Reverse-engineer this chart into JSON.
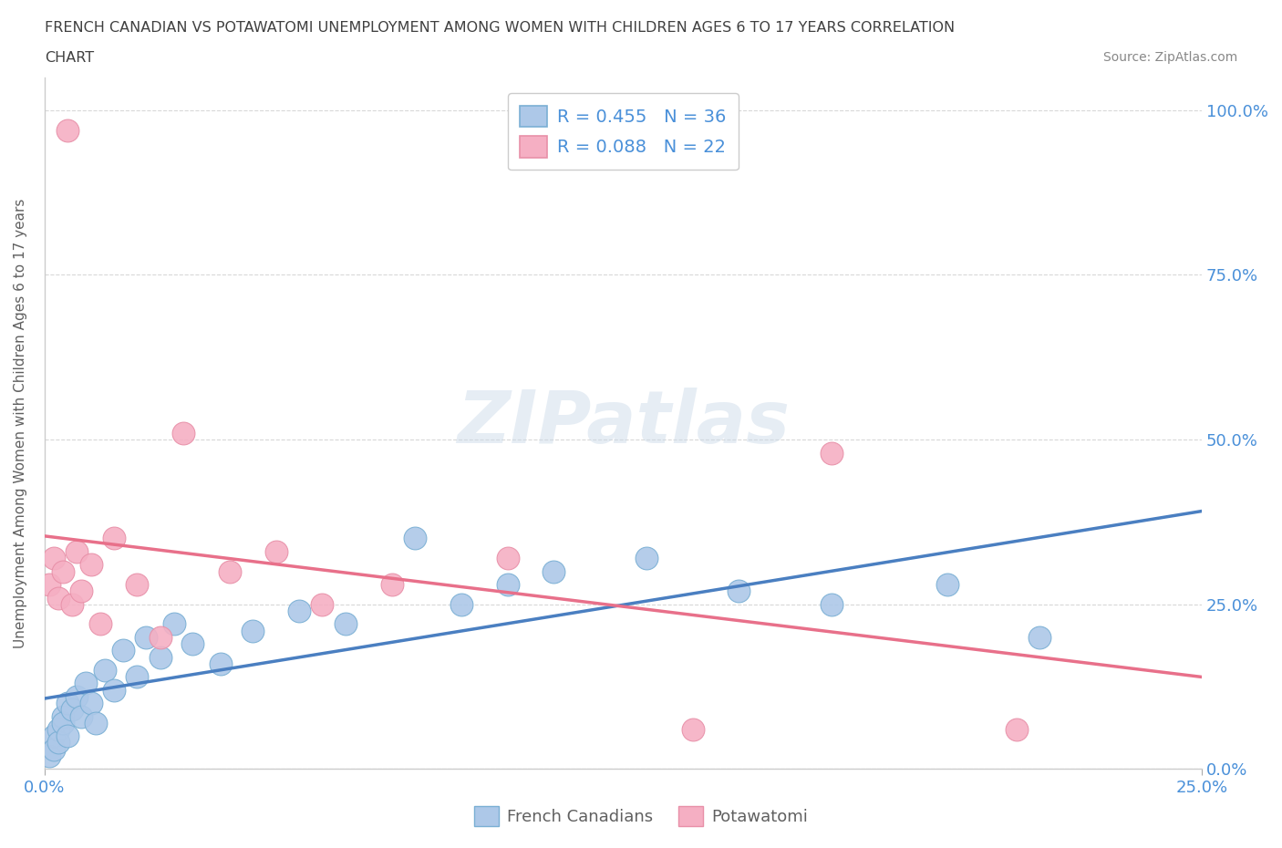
{
  "title_line1": "FRENCH CANADIAN VS POTAWATOMI UNEMPLOYMENT AMONG WOMEN WITH CHILDREN AGES 6 TO 17 YEARS CORRELATION",
  "title_line2": "CHART",
  "source_text": "Source: ZipAtlas.com",
  "ylabel": "Unemployment Among Women with Children Ages 6 to 17 years",
  "xlim": [
    0.0,
    0.25
  ],
  "ylim": [
    0.0,
    1.05
  ],
  "xtick_labels": [
    "0.0%",
    "25.0%"
  ],
  "ytick_labels": [
    "0.0%",
    "25.0%",
    "50.0%",
    "75.0%",
    "100.0%"
  ],
  "ytick_positions": [
    0.0,
    0.25,
    0.5,
    0.75,
    1.0
  ],
  "watermark_zip": "ZIP",
  "watermark_atlas": "atlas",
  "legend_blue_label": "R = 0.455   N = 36",
  "legend_pink_label": "R = 0.088   N = 22",
  "french_canadians_color": "#adc8e8",
  "potawatomi_color": "#f5afc3",
  "blue_line_color": "#4a7fc1",
  "pink_line_color": "#e8708a",
  "blue_marker_edge": "#7aafd4",
  "pink_marker_edge": "#e890a8",
  "french_x": [
    0.001,
    0.002,
    0.002,
    0.003,
    0.003,
    0.004,
    0.004,
    0.005,
    0.005,
    0.006,
    0.007,
    0.008,
    0.009,
    0.01,
    0.011,
    0.013,
    0.015,
    0.017,
    0.02,
    0.022,
    0.025,
    0.028,
    0.032,
    0.038,
    0.045,
    0.055,
    0.065,
    0.08,
    0.09,
    0.1,
    0.11,
    0.13,
    0.15,
    0.17,
    0.195,
    0.215
  ],
  "french_y": [
    0.02,
    0.05,
    0.03,
    0.06,
    0.04,
    0.08,
    0.07,
    0.1,
    0.05,
    0.09,
    0.11,
    0.08,
    0.13,
    0.1,
    0.07,
    0.15,
    0.12,
    0.18,
    0.14,
    0.2,
    0.17,
    0.22,
    0.19,
    0.16,
    0.21,
    0.24,
    0.22,
    0.35,
    0.25,
    0.28,
    0.3,
    0.32,
    0.27,
    0.25,
    0.28,
    0.2
  ],
  "potawatomi_x": [
    0.001,
    0.002,
    0.003,
    0.004,
    0.005,
    0.006,
    0.007,
    0.008,
    0.01,
    0.012,
    0.015,
    0.02,
    0.025,
    0.03,
    0.04,
    0.05,
    0.06,
    0.075,
    0.1,
    0.14,
    0.17,
    0.21
  ],
  "potawatomi_y": [
    0.28,
    0.32,
    0.26,
    0.3,
    0.97,
    0.25,
    0.33,
    0.27,
    0.31,
    0.22,
    0.35,
    0.28,
    0.2,
    0.51,
    0.3,
    0.33,
    0.25,
    0.28,
    0.32,
    0.06,
    0.48,
    0.06
  ],
  "background_color": "#ffffff",
  "grid_color": "#d8d8d8",
  "title_color": "#404040",
  "axis_label_color": "#606060",
  "tick_label_color": "#4a90d9"
}
